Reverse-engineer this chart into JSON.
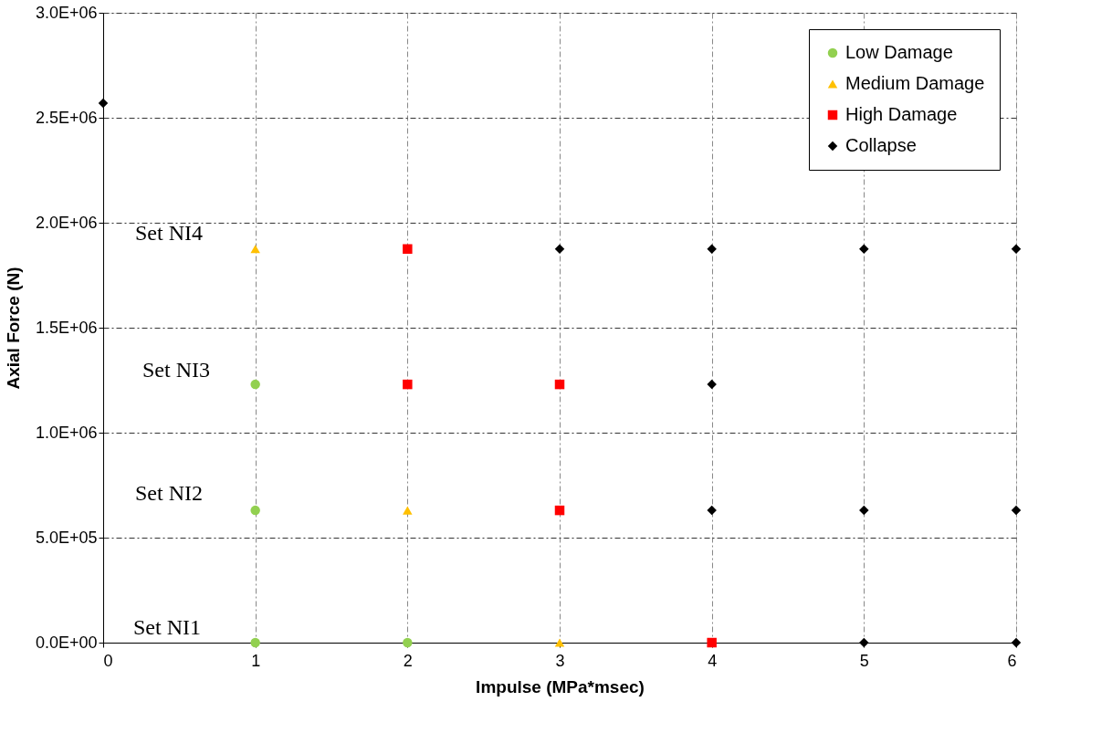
{
  "chart_data": {
    "type": "scatter",
    "xlabel": "Impulse (MPa*msec)",
    "ylabel": "Axial Force (N)",
    "xlim": [
      0,
      6
    ],
    "xticks": [
      {
        "value": 0,
        "label": "0"
      },
      {
        "value": 1,
        "label": "1"
      },
      {
        "value": 2,
        "label": "2"
      },
      {
        "value": 3,
        "label": "3"
      },
      {
        "value": 4,
        "label": "4"
      },
      {
        "value": 5,
        "label": "5"
      },
      {
        "value": 6,
        "label": "6"
      }
    ],
    "ylim": [
      0,
      3000000
    ],
    "yticks": [
      {
        "value": 0,
        "label": "0.0E+00"
      },
      {
        "value": 500000,
        "label": "5.0E+05"
      },
      {
        "value": 1000000,
        "label": "1.0E+06"
      },
      {
        "value": 1500000,
        "label": "1.5E+06"
      },
      {
        "value": 2000000,
        "label": "2.0E+06"
      },
      {
        "value": 2500000,
        "label": "2.5E+06"
      },
      {
        "value": 3000000,
        "label": "3.0E+06"
      }
    ],
    "grid": true,
    "legend": "top right",
    "series": [
      {
        "name": "Low Damage",
        "color": "#92d050",
        "marker": "circle",
        "x": [
          1,
          1,
          1,
          2
        ],
        "values": [
          1230000,
          630000,
          0,
          0
        ]
      },
      {
        "name": "Medium Damage",
        "color": "#ffc000",
        "marker": "triangle",
        "x": [
          1,
          2,
          3
        ],
        "values": [
          1875000,
          630000,
          0
        ]
      },
      {
        "name": "High Damage",
        "color": "#ff0000",
        "marker": "square",
        "x": [
          2,
          2,
          3,
          3,
          4
        ],
        "values": [
          1875000,
          1230000,
          1230000,
          630000,
          0
        ]
      },
      {
        "name": "Collapse",
        "color": "#000000",
        "marker": "diamond",
        "x": [
          0,
          3,
          4,
          5,
          6,
          4,
          4,
          5,
          6,
          5,
          6
        ],
        "values": [
          2570000,
          1875000,
          1875000,
          1875000,
          1875000,
          1230000,
          630000,
          630000,
          630000,
          0,
          0
        ]
      }
    ],
    "annotations": [
      "Set NI4",
      "Set NI3",
      "Set NI2",
      "Set NI1"
    ]
  }
}
